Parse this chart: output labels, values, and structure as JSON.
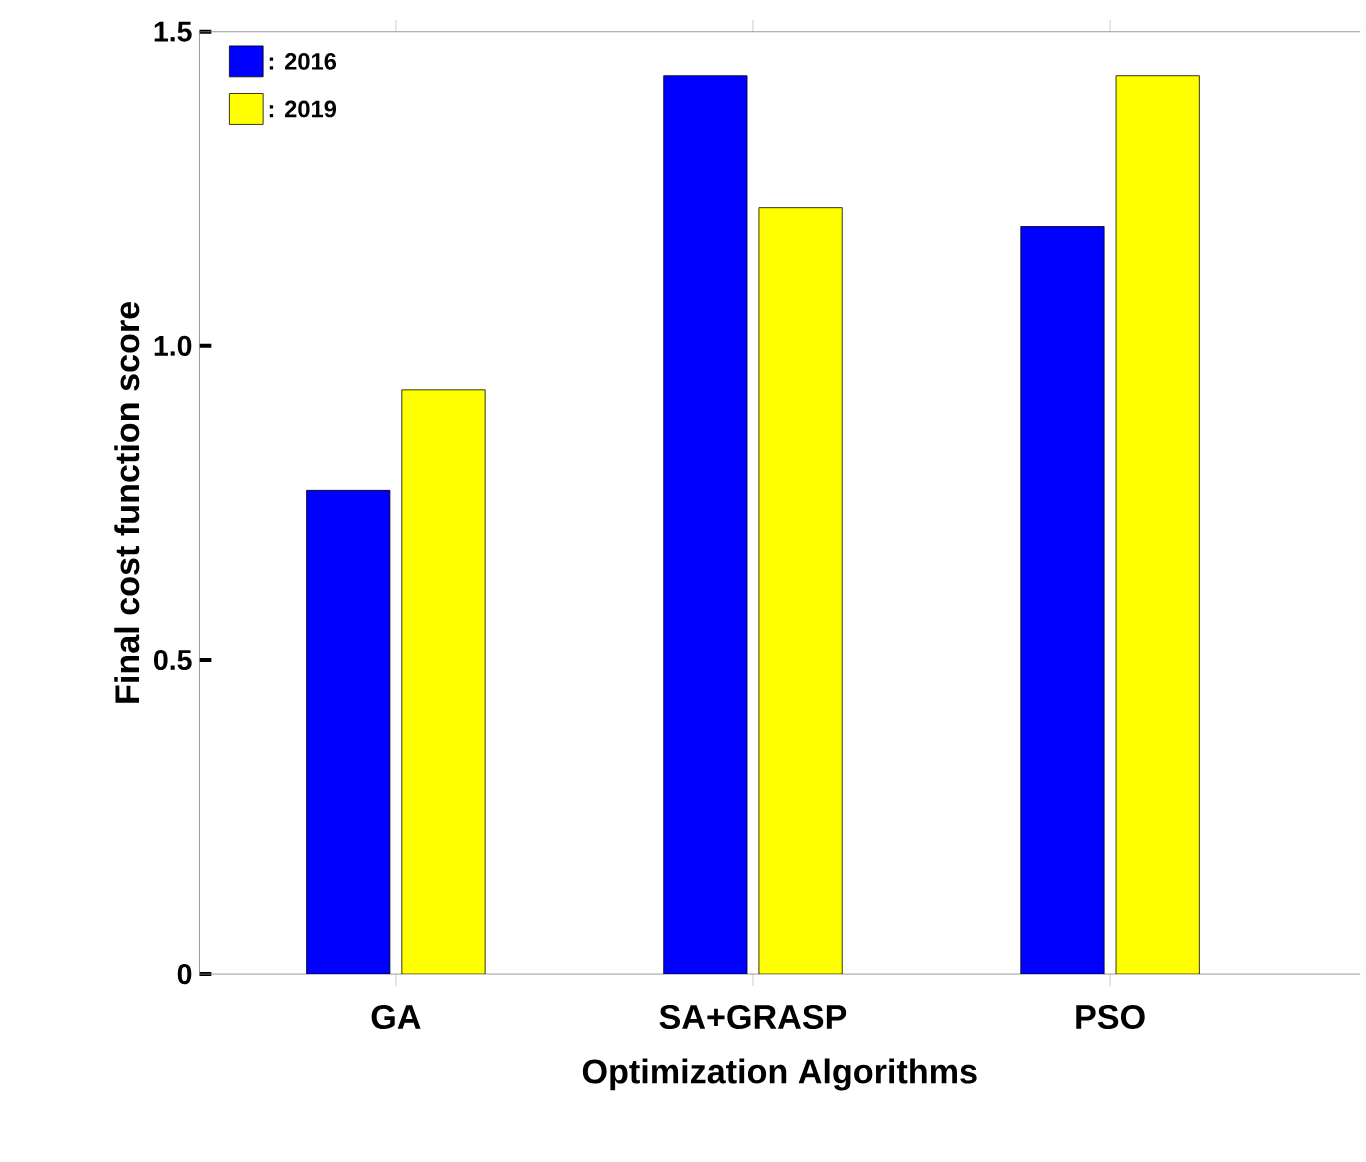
{
  "chart_data": {
    "type": "bar",
    "xlabel": "Optimization Algorithms",
    "ylabel": "Final cost function score",
    "categories": [
      "GA",
      "SA+GRASP",
      "PSO"
    ],
    "series": [
      {
        "name": ": 2016",
        "color": "#0000ff",
        "values": [
          0.77,
          1.43,
          1.19
        ]
      },
      {
        "name": ": 2019",
        "color": "#ffff00",
        "values": [
          0.93,
          1.22,
          1.43
        ]
      }
    ],
    "ylim": [
      0,
      1.5
    ],
    "yticks": [
      0,
      0.5,
      {
        "value": 1.0,
        "label": "1.0"
      },
      1.5
    ],
    "legend": "top left",
    "grid": false
  }
}
